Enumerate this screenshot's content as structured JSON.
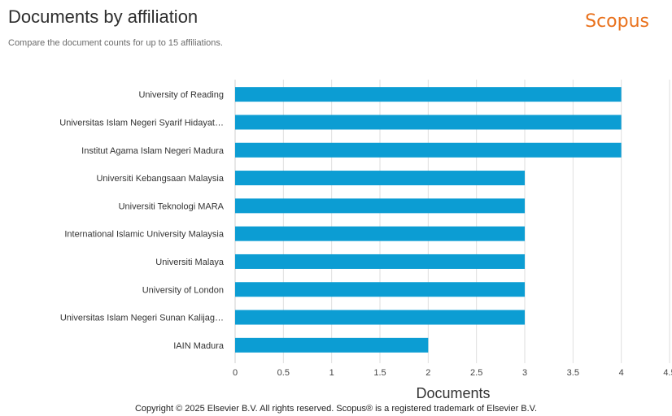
{
  "header": {
    "title": "Documents by affiliation",
    "subtitle": "Compare the document counts for up to 15 affiliations.",
    "brand": "Scopus"
  },
  "footer": {
    "copyright": "Copyright © 2025 Elsevier B.V. All rights reserved. Scopus® is a registered trademark of Elsevier B.V."
  },
  "colors": {
    "bar": "#0c9dd3",
    "grid": "#dedede",
    "brand": "#e9711c"
  },
  "chart_data": {
    "type": "bar",
    "orientation": "horizontal",
    "categories": [
      "University of Reading",
      "Universitas Islam Negeri Syarif Hidayat…",
      "Institut Agama Islam Negeri Madura",
      "Universiti Kebangsaan Malaysia",
      "Universiti Teknologi MARA",
      "International Islamic University Malaysia",
      "Universiti Malaya",
      "University of London",
      "Universitas Islam Negeri Sunan Kalijag…",
      "IAIN Madura"
    ],
    "values": [
      4,
      4,
      4,
      3,
      3,
      3,
      3,
      3,
      3,
      2
    ],
    "xlabel": "Documents",
    "ylabel": "",
    "xlim": [
      0,
      4.5
    ],
    "xticks": [
      "0",
      "0.5",
      "1",
      "1.5",
      "2",
      "2.5",
      "3",
      "3.5",
      "4",
      "4.5"
    ],
    "grid": true,
    "legend": "none"
  }
}
